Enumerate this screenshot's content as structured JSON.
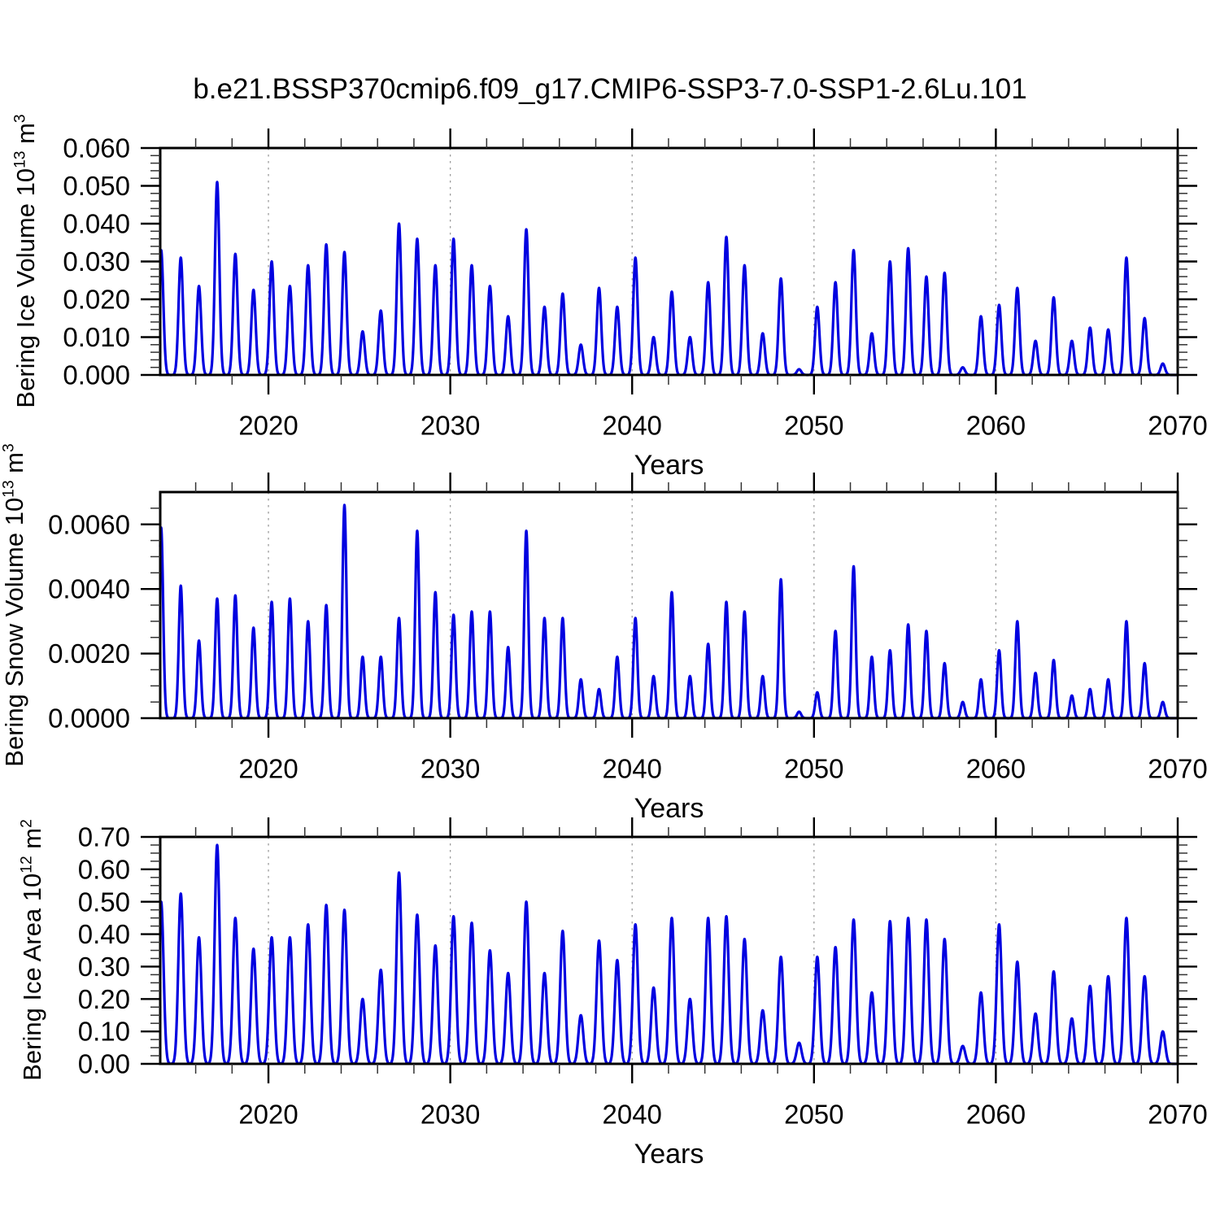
{
  "page": {
    "title": "b.e21.BSSP370cmip6.f09_g17.CMIP6-SSP3-7.0-SSP1-2.6Lu.101"
  },
  "style": {
    "line_color": "#0000e0",
    "axis_color": "#000000",
    "minor_tick_color": "#333333",
    "grid_color": "#9a9a9a",
    "background": "#ffffff"
  },
  "chart_data": [
    {
      "type": "line",
      "id": "bering-ice-volume",
      "ylabel_parts": {
        "prefix": "Bering Ice Volume 10",
        "exponent": "13",
        "unit": " m",
        "unit_exponent": "3"
      },
      "xlabel": "Years",
      "x_range": [
        2014.05,
        2070
      ],
      "xticks": [
        2020,
        2030,
        2040,
        2050,
        2060,
        2070
      ],
      "x_minor_step": 2,
      "grid_years": [
        2020,
        2030,
        2040,
        2050,
        2060
      ],
      "ylim": [
        0,
        0.06
      ],
      "ytick_step": 0.01,
      "y_minor_step": 0.002,
      "ytick_decimals": 3,
      "legend": "none",
      "seasonal_cycle": {
        "start_year": 2014,
        "peak_phase": 0.18,
        "first_peak_phase": 0.1,
        "pulse_width": 0.17,
        "annual_peak_values": [
          0.033,
          0.031,
          0.0235,
          0.051,
          0.032,
          0.0225,
          0.03,
          0.0235,
          0.029,
          0.0345,
          0.0325,
          0.0115,
          0.017,
          0.04,
          0.036,
          0.029,
          0.036,
          0.029,
          0.0235,
          0.0155,
          0.0385,
          0.018,
          0.0215,
          0.008,
          0.023,
          0.018,
          0.031,
          0.01,
          0.022,
          0.01,
          0.0245,
          0.0365,
          0.029,
          0.011,
          0.0255,
          0.0015,
          0.018,
          0.0245,
          0.033,
          0.011,
          0.03,
          0.0335,
          0.026,
          0.027,
          0.002,
          0.0155,
          0.0185,
          0.023,
          0.009,
          0.0205,
          0.009,
          0.0125,
          0.012,
          0.031,
          0.015,
          0.003
        ]
      }
    },
    {
      "type": "line",
      "id": "bering-snow-volume",
      "ylabel_parts": {
        "prefix": "Bering Snow Volume 10",
        "exponent": "13",
        "unit": " m",
        "unit_exponent": "3"
      },
      "xlabel": "Years",
      "x_range": [
        2014.05,
        2070
      ],
      "xticks": [
        2020,
        2030,
        2040,
        2050,
        2060,
        2070
      ],
      "x_minor_step": 2,
      "grid_years": [
        2020,
        2030,
        2040,
        2050,
        2060
      ],
      "ylim": [
        0,
        0.007
      ],
      "ytick_step": 0.002,
      "y_minor_step": 0.0005,
      "ytick_decimals": 4,
      "legend": "none",
      "seasonal_cycle": {
        "start_year": 2014,
        "peak_phase": 0.18,
        "first_peak_phase": 0.1,
        "pulse_width": 0.155,
        "annual_peak_values": [
          0.0059,
          0.0041,
          0.0024,
          0.0037,
          0.0038,
          0.0028,
          0.0036,
          0.0037,
          0.003,
          0.0035,
          0.0066,
          0.0019,
          0.0019,
          0.0031,
          0.0058,
          0.0039,
          0.0032,
          0.0033,
          0.0033,
          0.0022,
          0.0058,
          0.0031,
          0.0031,
          0.0012,
          0.0009,
          0.0019,
          0.0031,
          0.0013,
          0.0039,
          0.0013,
          0.0023,
          0.0036,
          0.0033,
          0.0013,
          0.0043,
          0.0002,
          0.0008,
          0.0027,
          0.0047,
          0.0019,
          0.0021,
          0.0029,
          0.0027,
          0.0017,
          0.0005,
          0.0012,
          0.0021,
          0.003,
          0.0014,
          0.0018,
          0.0007,
          0.0009,
          0.0012,
          0.003,
          0.0017,
          0.0005
        ]
      }
    },
    {
      "type": "line",
      "id": "bering-ice-area",
      "ylabel_parts": {
        "prefix": "Bering Ice Area 10",
        "exponent": "12",
        "unit": " m",
        "unit_exponent": "2"
      },
      "xlabel": "Years",
      "x_range": [
        2014.05,
        2070
      ],
      "xticks": [
        2020,
        2030,
        2040,
        2050,
        2060,
        2070
      ],
      "x_minor_step": 2,
      "grid_years": [
        2020,
        2030,
        2040,
        2050,
        2060
      ],
      "ylim": [
        0,
        0.7
      ],
      "ytick_step": 0.1,
      "y_minor_step": 0.025,
      "ytick_decimals": 2,
      "legend": "none",
      "seasonal_cycle": {
        "start_year": 2014,
        "peak_phase": 0.18,
        "first_peak_phase": 0.1,
        "pulse_width": 0.19,
        "annual_peak_values": [
          0.5,
          0.525,
          0.39,
          0.675,
          0.45,
          0.355,
          0.39,
          0.39,
          0.43,
          0.49,
          0.475,
          0.2,
          0.29,
          0.59,
          0.46,
          0.365,
          0.455,
          0.435,
          0.35,
          0.28,
          0.5,
          0.28,
          0.41,
          0.15,
          0.38,
          0.32,
          0.43,
          0.235,
          0.45,
          0.2,
          0.45,
          0.455,
          0.385,
          0.165,
          0.33,
          0.065,
          0.33,
          0.36,
          0.445,
          0.22,
          0.44,
          0.45,
          0.445,
          0.385,
          0.055,
          0.22,
          0.43,
          0.315,
          0.155,
          0.285,
          0.14,
          0.24,
          0.27,
          0.45,
          0.27,
          0.1
        ]
      }
    }
  ]
}
